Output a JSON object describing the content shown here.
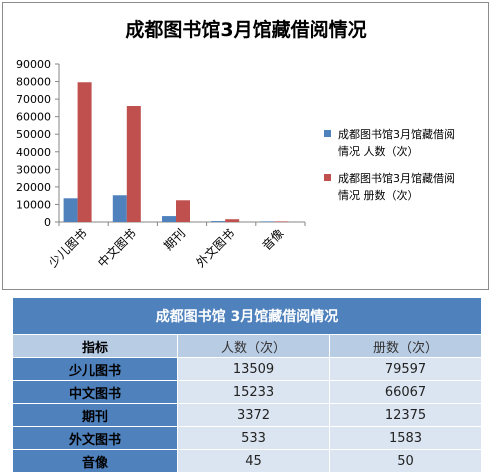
{
  "chart_data": {
    "type": "bar",
    "title": "成都图书馆3月馆藏借阅情况",
    "categories": [
      "少儿图书",
      "中文图书",
      "期刊",
      "外文图书",
      "音像"
    ],
    "series": [
      {
        "name": "成都图书馆3月馆藏借阅情况 人数（次）",
        "values": [
          13509,
          15233,
          3372,
          533,
          45
        ]
      },
      {
        "name": "成都图书馆3月馆藏借阅情况 册数（次）",
        "values": [
          79597,
          66067,
          12375,
          1583,
          50
        ]
      }
    ],
    "yticks": [
      0,
      10000,
      20000,
      30000,
      40000,
      50000,
      60000,
      70000,
      80000,
      90000
    ],
    "ylim": [
      0,
      90000
    ],
    "grid": false,
    "legend": "right",
    "colors": [
      "#4f81bd",
      "#c0504d"
    ],
    "xlabel": "",
    "ylabel": ""
  },
  "legend": {
    "line1": [
      "成都图书馆3月馆藏借阅",
      "情况 人数（次）"
    ],
    "line2": [
      "成都图书馆3月馆藏借阅",
      "情况 册数（次）"
    ]
  },
  "table": {
    "title": "成都图书馆 3月馆藏借阅情况",
    "headers": [
      "指标",
      "人数（次）",
      "册数（次）"
    ],
    "rows": [
      [
        "少儿图书",
        "13509",
        "79597"
      ],
      [
        "中文图书",
        "15233",
        "66067"
      ],
      [
        "期刊",
        "3372",
        "12375"
      ],
      [
        "外文图书",
        "533",
        "1583"
      ],
      [
        "音像",
        "45",
        "50"
      ]
    ]
  }
}
